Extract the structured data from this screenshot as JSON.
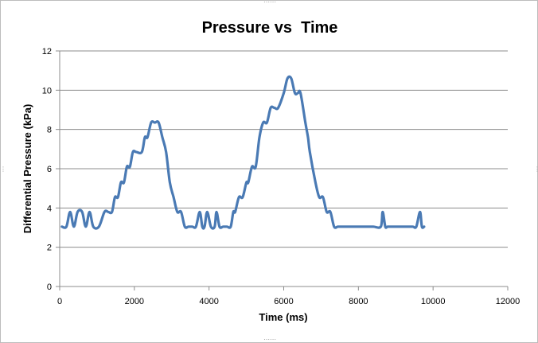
{
  "chart_data": {
    "type": "line",
    "title": "Pressure vs  Time",
    "xlabel": "Time (ms)",
    "ylabel": "Differential Pressure (kPa)",
    "xlim": [
      0,
      12000
    ],
    "ylim": [
      0,
      12
    ],
    "x_ticks": [
      "0",
      "2000",
      "4000",
      "6000",
      "8000",
      "10000",
      "12000"
    ],
    "y_ticks": [
      "0",
      "2",
      "4",
      "6",
      "8",
      "10",
      "12"
    ],
    "grid": "horizontal",
    "legend": "none",
    "series": [
      {
        "color": "#4a7ab4",
        "x": [
          60,
          180,
          280,
          380,
          480,
          600,
          700,
          800,
          900,
          1050,
          1200,
          1300,
          1400,
          1480,
          1560,
          1640,
          1720,
          1800,
          1880,
          1960,
          2050,
          2200,
          2280,
          2350,
          2450,
          2550,
          2650,
          2750,
          2850,
          2950,
          3050,
          3150,
          3250,
          3350,
          3450,
          3550,
          3650,
          3750,
          3820,
          3880,
          3950,
          4050,
          4150,
          4200,
          4280,
          4380,
          4480,
          4580,
          4650,
          4700,
          4800,
          4900,
          5000,
          5050,
          5150,
          5250,
          5350,
          5450,
          5550,
          5650,
          5750,
          5850,
          6000,
          6100,
          6200,
          6300,
          6380,
          6450,
          6580,
          6650,
          6700,
          6850,
          6950,
          7050,
          7150,
          7250,
          7350,
          7450,
          7550,
          7700,
          7850,
          8000,
          8200,
          8400,
          8600,
          8650,
          8720,
          8780,
          8850,
          8950,
          9100,
          9250,
          9450,
          9550,
          9650,
          9700,
          9760
        ],
        "values": [
          3.05,
          3.05,
          3.8,
          3.05,
          3.8,
          3.8,
          3.05,
          3.8,
          3.05,
          3.05,
          3.8,
          3.8,
          3.8,
          4.55,
          4.55,
          5.3,
          5.3,
          6.1,
          6.1,
          6.85,
          6.85,
          6.85,
          7.6,
          7.6,
          8.35,
          8.35,
          8.35,
          7.6,
          6.85,
          5.3,
          4.55,
          3.8,
          3.8,
          3.05,
          3.05,
          3.05,
          3.05,
          3.8,
          3.05,
          3.05,
          3.8,
          3.05,
          3.05,
          3.8,
          3.05,
          3.05,
          3.05,
          3.05,
          3.8,
          3.8,
          4.55,
          4.55,
          5.3,
          5.3,
          6.1,
          6.1,
          7.6,
          8.35,
          8.35,
          9.1,
          9.1,
          9.1,
          9.85,
          10.6,
          10.6,
          9.85,
          9.85,
          9.85,
          8.35,
          7.6,
          6.85,
          5.3,
          4.55,
          4.55,
          3.8,
          3.8,
          3.05,
          3.05,
          3.05,
          3.05,
          3.05,
          3.05,
          3.05,
          3.05,
          3.05,
          3.8,
          3.05,
          3.05,
          3.05,
          3.05,
          3.05,
          3.05,
          3.05,
          3.05,
          3.8,
          3.05,
          3.05
        ]
      }
    ]
  }
}
